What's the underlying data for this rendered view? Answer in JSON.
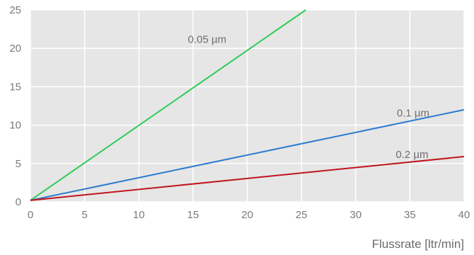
{
  "chart_data": {
    "type": "line",
    "title": "",
    "xlabel": "Flussrate [ltr/min]",
    "ylabel": "",
    "xlim": [
      0,
      40
    ],
    "ylim": [
      0,
      25
    ],
    "x_ticks": [
      0,
      5,
      10,
      15,
      20,
      25,
      30,
      35,
      40
    ],
    "y_ticks": [
      0,
      5,
      10,
      15,
      20,
      25
    ],
    "grid": true,
    "legend": "none",
    "background": "#e6e6e6",
    "grid_color": "#ffffff",
    "series": [
      {
        "name": "0.05 µm",
        "color": "#2ecc5a",
        "x": [
          0,
          25.4
        ],
        "y": [
          0.2,
          25
        ]
      },
      {
        "name": "0.1 µm",
        "color": "#2b7bd0",
        "x": [
          0,
          40
        ],
        "y": [
          0.2,
          12
        ]
      },
      {
        "name": "0.2 µm",
        "color": "#c0161c",
        "x": [
          0,
          40
        ],
        "y": [
          0.2,
          5.9
        ]
      }
    ]
  }
}
